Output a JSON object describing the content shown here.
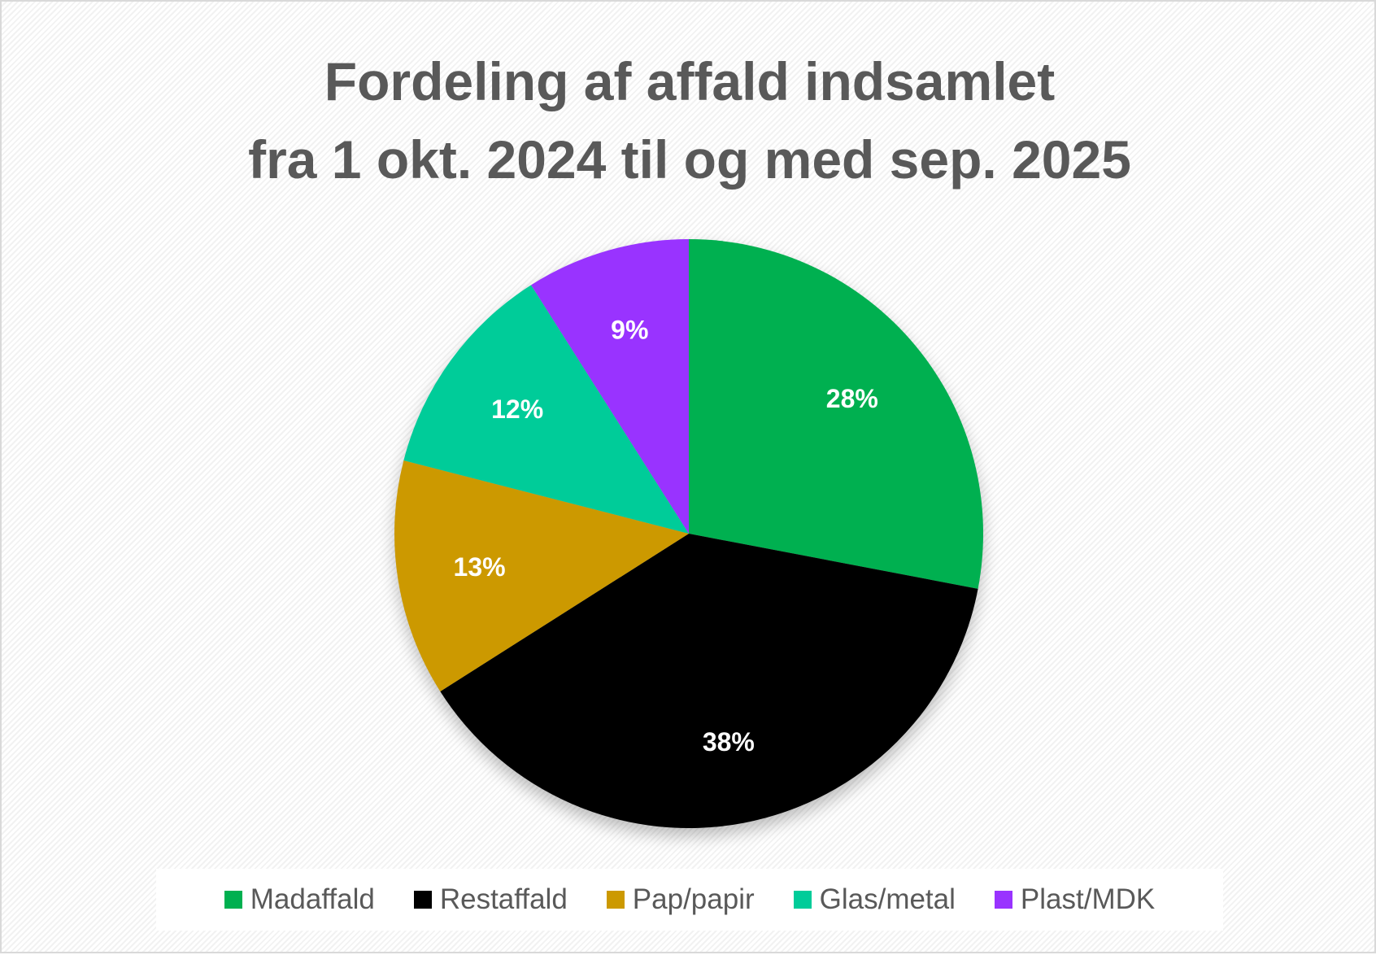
{
  "chart_data": {
    "type": "pie",
    "title_line1": "Fordeling af affald indsamlet",
    "title_line2": "fra 1 okt. 2024 til og med sep. 2025",
    "categories": [
      "Madaffald",
      "Restaffald",
      "Pap/papir",
      "Glas/metal",
      "Plast/MDK"
    ],
    "values": [
      28,
      38,
      13,
      12,
      9
    ],
    "labels": [
      "28%",
      "38%",
      "13%",
      "12%",
      "9%"
    ],
    "colors": [
      "#00B050",
      "#000000",
      "#CC9900",
      "#00CC99",
      "#9933FF"
    ],
    "legend_position": "bottom"
  }
}
